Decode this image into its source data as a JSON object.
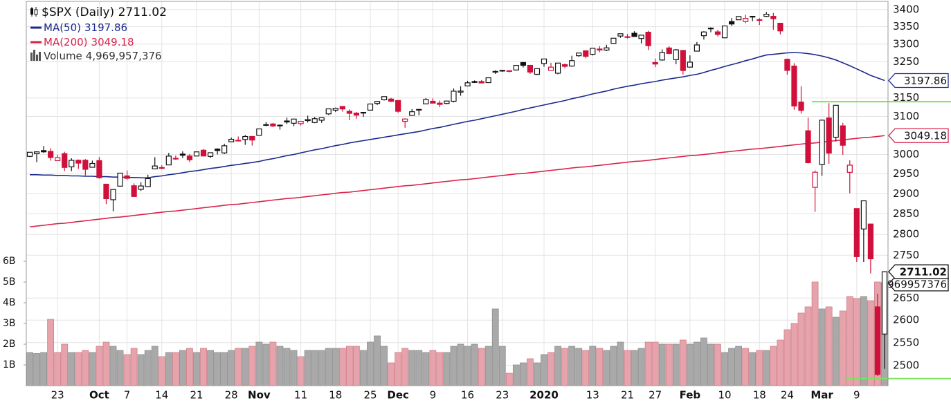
{
  "chart_data": {
    "type": "candlestick",
    "title": "$SPX (Daily) 2711.02",
    "log_scale": true,
    "grid": true,
    "categories": [
      null,
      null,
      null,
      null,
      "23",
      null,
      null,
      null,
      null,
      null,
      "Oct",
      null,
      null,
      null,
      "7",
      null,
      null,
      null,
      null,
      "14",
      null,
      null,
      null,
      null,
      "21",
      null,
      null,
      null,
      null,
      "28",
      null,
      null,
      null,
      "Nov",
      null,
      null,
      null,
      null,
      null,
      "11",
      null,
      null,
      null,
      null,
      "18",
      null,
      null,
      null,
      null,
      "25",
      null,
      null,
      null,
      "Dec",
      null,
      null,
      null,
      null,
      "9",
      null,
      null,
      null,
      null,
      "16",
      null,
      null,
      null,
      null,
      "23",
      null,
      null,
      null,
      null,
      null,
      "2020",
      null,
      null,
      null,
      null,
      null,
      null,
      "13",
      null,
      null,
      null,
      null,
      "21",
      null,
      null,
      null,
      "27",
      null,
      null,
      null,
      null,
      "Feb",
      null,
      null,
      null,
      null,
      "10",
      null,
      null,
      null,
      null,
      "18",
      null,
      null,
      null,
      "24",
      null,
      null,
      null,
      null,
      "Mar",
      null,
      null,
      null,
      null,
      "9",
      null,
      null,
      null,
      null
    ],
    "open": [
      2995,
      3002,
      3010,
      3008,
      2984,
      3002,
      2968,
      2985,
      2985,
      2967,
      2984,
      2924,
      2885,
      2919,
      2945,
      2920,
      2911,
      2918,
      2963,
      2966,
      2973,
      2990,
      3001,
      2996,
      2996,
      3011,
      2995,
      3014,
      3004,
      3033,
      3036,
      3039,
      3047,
      3050,
      3078,
      3080,
      3076,
      3088,
      3082,
      3081,
      3089,
      3084,
      3090,
      3107,
      3117,
      3127,
      3114,
      3109,
      3111,
      3117,
      3135,
      3145,
      3147,
      3143,
      3087,
      3103,
      3119,
      3134,
      3141,
      3136,
      3135,
      3141,
      3166,
      3183,
      3195,
      3195,
      3192,
      3223,
      3226,
      3225,
      3227,
      3248,
      3240,
      3215,
      3245,
      3226,
      3218,
      3242,
      3238,
      3267,
      3281,
      3271,
      3286,
      3283,
      3302,
      3323,
      3321,
      3331,
      3316,
      3334,
      3248,
      3255,
      3289,
      3256,
      3282,
      3235,
      3280,
      3324,
      3344,
      3335,
      3318,
      3365,
      3370,
      3365,
      3378,
      3370,
      3380,
      3380,
      3360,
      3257,
      3238,
      3139,
      3062,
      2916,
      2974,
      3096,
      3045,
      3075,
      2954,
      2863,
      2813,
      2825,
      2630,
      2569
    ],
    "high": [
      3006,
      3008,
      3022,
      3016,
      2999,
      3007,
      2990,
      2987,
      2988,
      2984,
      2993,
      2924,
      2911,
      2953,
      2959,
      2926,
      2929,
      2948,
      2993,
      2972,
      3004,
      2997,
      3008,
      3001,
      3007,
      3014,
      3005,
      3016,
      3028,
      3044,
      3047,
      3051,
      3047,
      3067,
      3085,
      3083,
      3079,
      3097,
      3094,
      3088,
      3102,
      3099,
      3097,
      3121,
      3124,
      3128,
      3119,
      3112,
      3112,
      3134,
      3142,
      3154,
      3150,
      3144,
      3095,
      3120,
      3120,
      3150,
      3149,
      3143,
      3143,
      3176,
      3182,
      3197,
      3198,
      3199,
      3206,
      3226,
      3227,
      3226,
      3240,
      3248,
      3241,
      3231,
      3258,
      3247,
      3247,
      3245,
      3267,
      3275,
      3282,
      3289,
      3294,
      3298,
      3317,
      3330,
      3329,
      3337,
      3326,
      3338,
      3259,
      3285,
      3294,
      3286,
      3282,
      3268,
      3306,
      3337,
      3348,
      3341,
      3353,
      3375,
      3381,
      3385,
      3381,
      3375,
      3393,
      3390,
      3360,
      3259,
      3246,
      3182,
      3097,
      2959,
      3091,
      3136,
      3131,
      3083,
      2985,
      2863,
      2883,
      2825,
      2660,
      2712
    ],
    "low": [
      2993,
      2980,
      3004,
      2984,
      2983,
      2957,
      2957,
      2963,
      2946,
      2967,
      2938,
      2874,
      2856,
      2918,
      2935,
      2892,
      2907,
      2917,
      2963,
      2962,
      2973,
      2986,
      2991,
      2980,
      2995,
      2995,
      2991,
      3000,
      3001,
      3032,
      3034,
      3025,
      3023,
      3050,
      3074,
      3072,
      3065,
      3080,
      3074,
      3076,
      3084,
      3082,
      3083,
      3104,
      3112,
      3113,
      3090,
      3094,
      3099,
      3117,
      3131,
      3143,
      3139,
      3110,
      3070,
      3103,
      3103,
      3134,
      3135,
      3125,
      3133,
      3138,
      3156,
      3183,
      3191,
      3191,
      3192,
      3216,
      3222,
      3220,
      3227,
      3234,
      3216,
      3213,
      3236,
      3226,
      3215,
      3232,
      3236,
      3264,
      3260,
      3268,
      3277,
      3280,
      3302,
      3318,
      3316,
      3321,
      3302,
      3283,
      3235,
      3253,
      3271,
      3243,
      3214,
      3235,
      3280,
      3313,
      3334,
      3322,
      3317,
      3352,
      3369,
      3360,
      3366,
      3355,
      3378,
      3341,
      3328,
      3214,
      3118,
      3108,
      2977,
      2855,
      2945,
      2976,
      3034,
      2999,
      2901,
      2734,
      2734,
      2707,
      2478,
      2493
    ],
    "close": [
      3005.7,
      3006.73,
      3006.79,
      2992.07,
      2991.78,
      2966.6,
      2984.87,
      2977.62,
      2961.79,
      2976.74,
      2940.25,
      2887.61,
      2910.63,
      2952.01,
      2938.79,
      2893.06,
      2919.4,
      2938.13,
      2970.27,
      2966.15,
      2995.68,
      2989.69,
      2997.95,
      2986.2,
      3006.72,
      2995.99,
      3004.52,
      3010.29,
      3022.55,
      3039.42,
      3036.89,
      3046.77,
      3037.56,
      3066.91,
      3078.27,
      3074.62,
      3076.78,
      3085.18,
      3093.08,
      3087.01,
      3091.84,
      3094.04,
      3096.63,
      3120.46,
      3122.03,
      3120.18,
      3108.46,
      3103.54,
      3110.29,
      3133.64,
      3140.52,
      3153.63,
      3140.98,
      3113.87,
      3093.2,
      3112.76,
      3117.43,
      3145.91,
      3135.96,
      3132.52,
      3141.63,
      3168.57,
      3168.8,
      3191.45,
      3192.52,
      3191.14,
      3205.37,
      3221.22,
      3224.01,
      3223.38,
      3239.91,
      3240.02,
      3221.29,
      3230.78,
      3257.85,
      3234.85,
      3246.28,
      3237.18,
      3253.05,
      3274.7,
      3265.35,
      3288.13,
      3283.15,
      3289.29,
      3316.81,
      3329.62,
      3320.79,
      3321.75,
      3325.54,
      3295.47,
      3243.63,
      3276.24,
      3273.4,
      3283.66,
      3225.52,
      3248.92,
      3297.59,
      3334.69,
      3345.78,
      3327.71,
      3352.09,
      3357.75,
      3379.45,
      3373.94,
      3380.16,
      3370.29,
      3386.15,
      3373.23,
      3337.75,
      3225.89,
      3128.21,
      3116.39,
      2978.76,
      2954.22,
      3090.23,
      3003.37,
      3130.12,
      3023.94,
      2972.37,
      2746.56,
      2882.23,
      2741.38,
      2480.64,
      2711.02
    ],
    "up_color": "#111111",
    "down_color": "#d0103a",
    "series": [
      {
        "name": "MA(50)",
        "color": "#1b2a8e",
        "values": [
          2948,
          2948,
          2947,
          2947,
          2946,
          2946,
          2945,
          2945,
          2944,
          2944,
          2943,
          2943,
          2942,
          2942,
          2941,
          2941,
          2940,
          2940,
          2943,
          2945,
          2948,
          2950,
          2953,
          2956,
          2958,
          2961,
          2964,
          2966,
          2969,
          2972,
          2974,
          2977,
          2979,
          2982,
          2986,
          2989,
          2993,
          2997,
          3000,
          3004,
          3008,
          3012,
          3015,
          3019,
          3023,
          3026,
          3030,
          3033,
          3036,
          3039,
          3042,
          3045,
          3048,
          3051,
          3054,
          3057,
          3060,
          3064,
          3068,
          3071,
          3075,
          3079,
          3083,
          3087,
          3090,
          3094,
          3098,
          3102,
          3106,
          3110,
          3114,
          3119,
          3123,
          3127,
          3131,
          3135,
          3139,
          3143,
          3148,
          3152,
          3156,
          3161,
          3165,
          3169,
          3174,
          3178,
          3182,
          3185,
          3189,
          3192,
          3195,
          3199,
          3202,
          3205,
          3208,
          3212,
          3215,
          3220,
          3226,
          3231,
          3237,
          3242,
          3247,
          3253,
          3258,
          3264,
          3269,
          3271,
          3273,
          3275,
          3276,
          3275,
          3273,
          3270,
          3266,
          3261,
          3255,
          3247,
          3239,
          3230,
          3221,
          3212,
          3205,
          3197.86
        ]
      },
      {
        "name": "MA(200)",
        "color": "#d9234b",
        "values": [
          2818,
          2820,
          2822,
          2824,
          2826,
          2827,
          2829,
          2831,
          2833,
          2835,
          2837,
          2839,
          2841,
          2842,
          2844,
          2846,
          2848,
          2850,
          2852,
          2854,
          2856,
          2857,
          2859,
          2861,
          2863,
          2865,
          2867,
          2869,
          2871,
          2873,
          2874,
          2876,
          2878,
          2880,
          2882,
          2884,
          2886,
          2888,
          2889,
          2891,
          2893,
          2895,
          2897,
          2899,
          2901,
          2903,
          2904,
          2906,
          2908,
          2910,
          2912,
          2914,
          2916,
          2918,
          2920,
          2921,
          2923,
          2925,
          2927,
          2929,
          2931,
          2933,
          2935,
          2936,
          2938,
          2940,
          2942,
          2944,
          2946,
          2948,
          2950,
          2951,
          2953,
          2955,
          2957,
          2959,
          2961,
          2963,
          2965,
          2967,
          2968,
          2970,
          2972,
          2974,
          2976,
          2978,
          2980,
          2982,
          2983,
          2985,
          2987,
          2989,
          2991,
          2993,
          2995,
          2997,
          2998,
          3000,
          3002,
          3004,
          3006,
          3008,
          3010,
          3012,
          3014,
          3015,
          3017,
          3019,
          3021,
          3023,
          3025,
          3027,
          3029,
          3030,
          3032,
          3034,
          3036,
          3038,
          3040,
          3042,
          3044,
          3045,
          3047,
          3049.18
        ]
      }
    ],
    "volume": {
      "name": "Volume",
      "legend_label": "4,969,957,376",
      "up_color": "#a9a9a9",
      "down_color": "#e7a3ab",
      "values": [
        1600000000.0,
        1550000000.0,
        1600000000.0,
        3200000000.0,
        1600000000.0,
        2000000000.0,
        1600000000.0,
        1600000000.0,
        1700000000.0,
        1600000000.0,
        1900000000.0,
        2100000000.0,
        1900000000.0,
        1700000000.0,
        1500000000.0,
        1800000000.0,
        1500000000.0,
        1700000000.0,
        1900000000.0,
        1400000000.0,
        1600000000.0,
        1600000000.0,
        1700000000.0,
        1800000000.0,
        1600000000.0,
        1800000000.0,
        1700000000.0,
        1600000000.0,
        1600000000.0,
        1700000000.0,
        1800000000.0,
        1800000000.0,
        1900000000.0,
        2100000000.0,
        2000000000.0,
        2100000000.0,
        1900000000.0,
        1800000000.0,
        1700000000.0,
        1400000000.0,
        1700000000.0,
        1700000000.0,
        1700000000.0,
        1800000000.0,
        1800000000.0,
        1800000000.0,
        1900000000.0,
        1900000000.0,
        1700000000.0,
        2100000000.0,
        2400000000.0,
        1900000000.0,
        1100000000.0,
        1600000000.0,
        1800000000.0,
        1700000000.0,
        1700000000.0,
        1600000000.0,
        1700000000.0,
        1600000000.0,
        1600000000.0,
        1900000000.0,
        2000000000.0,
        1900000000.0,
        2000000000.0,
        1800000000.0,
        1900000000.0,
        3700000000.0,
        1900000000.0,
        600000000.0,
        1000000000.0,
        1100000000.0,
        1300000000.0,
        1100000000.0,
        1500000000.0,
        1600000000.0,
        1900000000.0,
        1800000000.0,
        1900000000.0,
        1800000000.0,
        1700000000.0,
        1900000000.0,
        1800000000.0,
        1700000000.0,
        1900000000.0,
        2100000000.0,
        1700000000.0,
        1700000000.0,
        1800000000.0,
        2100000000.0,
        2100000000.0,
        2000000000.0,
        2000000000.0,
        2000000000.0,
        2200000000.0,
        2000000000.0,
        2100000000.0,
        2300000000.0,
        2000000000.0,
        2000000000.0,
        1600000000.0,
        1800000000.0,
        1900000000.0,
        1800000000.0,
        1600000000.0,
        1700000000.0,
        1700000000.0,
        1900000000.0,
        2200000000.0,
        2700000000.0,
        3000000000.0,
        3500000000.0,
        3800000000.0,
        5000000000.0,
        3700000000.0,
        3800000000.0,
        3300000000.0,
        3600000000.0,
        4300000000.0,
        4200000000.0,
        4300000000.0,
        4100000000.0,
        5000000000.0,
        4969957376
      ]
    },
    "ylim": [
      2457,
      3424
    ],
    "yticks": [
      2500,
      2550,
      2600,
      2650,
      2750,
      2800,
      2850,
      2900,
      2950,
      3000,
      3100,
      3150,
      3250,
      3300,
      3350,
      3400
    ],
    "y2lim": [
      0,
      18530000000
    ],
    "y2ticks": [
      {
        "value": 1000000000,
        "label": "1B"
      },
      {
        "value": 2000000000,
        "label": "2B"
      },
      {
        "value": 3000000000,
        "label": "3B"
      },
      {
        "value": 4000000000,
        "label": "4B"
      },
      {
        "value": 5000000000,
        "label": "5B"
      },
      {
        "value": 6000000000,
        "label": "6B"
      }
    ],
    "hlines": [
      3140,
      2472
    ],
    "hline_color": "#7be35a"
  }
}
